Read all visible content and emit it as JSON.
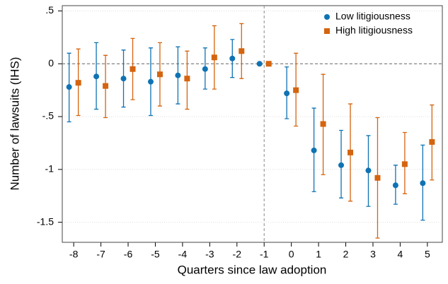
{
  "chart_data": {
    "type": "errorbar",
    "xlabel": "Quarters since law adoption",
    "ylabel": "Number of lawsuits (IHS)",
    "x": [
      -8,
      -7,
      -6,
      -5,
      -4,
      -3,
      -2,
      -1,
      0,
      1,
      2,
      3,
      4,
      5
    ],
    "xlim": [
      -8.42,
      5.55
    ],
    "xticks": [
      -8,
      -7,
      -6,
      -5,
      -4,
      -3,
      -2,
      -1,
      0,
      1,
      2,
      3,
      4,
      5
    ],
    "ylim": [
      -1.69,
      0.55
    ],
    "yticks": [
      {
        "value": 0.5,
        "label": ".5"
      },
      0,
      {
        "value": -0.5,
        "label": "-.5"
      },
      -1,
      -1.5
    ],
    "grid": true,
    "hline": 0,
    "vline": -1,
    "legend": "top-right",
    "series": [
      {
        "name": "Low litigiousness",
        "color": "#0f73b3",
        "marker": "circle",
        "values": [
          -0.22,
          -0.12,
          -0.14,
          -0.17,
          -0.11,
          -0.05,
          0.05,
          0,
          -0.28,
          -0.82,
          -0.96,
          -1.01,
          -1.15,
          -1.13
        ],
        "lower": [
          -0.55,
          -0.43,
          -0.41,
          -0.49,
          -0.38,
          -0.24,
          -0.13,
          null,
          -0.52,
          -1.21,
          -1.27,
          -1.35,
          -1.33,
          -1.48
        ],
        "upper": [
          0.1,
          0.2,
          0.13,
          0.15,
          0.16,
          0.15,
          0.23,
          null,
          -0.03,
          -0.42,
          -0.63,
          -0.68,
          -0.96,
          -0.77
        ]
      },
      {
        "name": "High litigiousness",
        "color": "#d4640f",
        "marker": "square",
        "values": [
          -0.18,
          -0.21,
          -0.05,
          -0.1,
          -0.14,
          0.06,
          0.12,
          0,
          -0.25,
          -0.57,
          -0.84,
          -1.08,
          -0.95,
          -0.74
        ],
        "lower": [
          -0.49,
          -0.51,
          -0.34,
          -0.4,
          -0.43,
          -0.24,
          -0.14,
          null,
          -0.59,
          -1.05,
          -1.3,
          -1.65,
          -1.23,
          -1.1
        ],
        "upper": [
          0.14,
          0.08,
          0.24,
          0.2,
          0.12,
          0.36,
          0.38,
          null,
          0.1,
          -0.1,
          -0.38,
          -0.51,
          -0.65,
          -0.39
        ]
      }
    ]
  }
}
